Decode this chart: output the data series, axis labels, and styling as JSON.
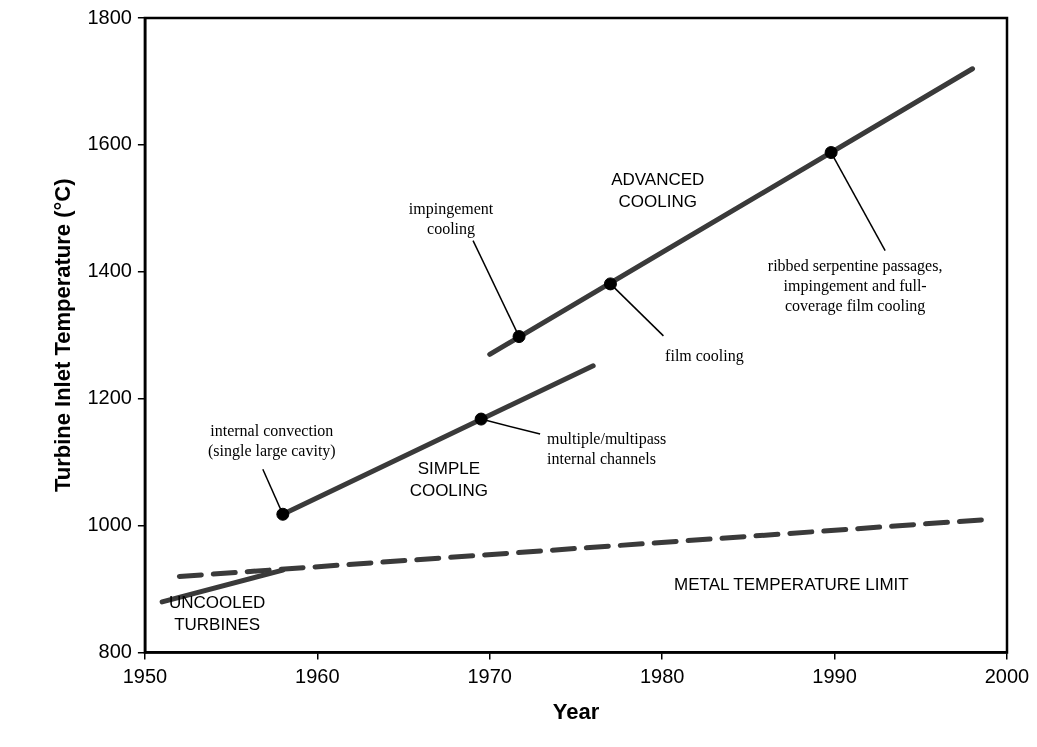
{
  "chart_data": {
    "type": "line",
    "xlabel": "Year",
    "ylabel": "Turbine Inlet Temperature (°C)",
    "xlim": [
      1950,
      2000
    ],
    "xticks": [
      1950,
      1960,
      1970,
      1980,
      1990,
      2000
    ],
    "ylim": [
      800,
      1800
    ],
    "yticks": [
      800,
      1000,
      1200,
      1400,
      1600,
      1800
    ],
    "legend": false,
    "grid": false,
    "marker": "none",
    "series": [
      {
        "name": "UNCOOLED TURBINES",
        "color": "#3a3a3a",
        "x": [
          1951,
          1958
        ],
        "values": [
          880,
          930
        ],
        "line_style": "solid"
      },
      {
        "name": "SIMPLE COOLING",
        "color": "#3a3a3a",
        "x": [
          1958,
          1976
        ],
        "values": [
          1018,
          1252
        ],
        "line_style": "solid"
      },
      {
        "name": "ADVANCED COOLING",
        "color": "#3a3a3a",
        "x": [
          1970,
          1998
        ],
        "values": [
          1270,
          1720
        ],
        "line_style": "solid"
      },
      {
        "name": "METAL TEMPERATURE LIMIT",
        "color": "#3a3a3a",
        "x": [
          1952,
          1999
        ],
        "values": [
          920,
          1010
        ],
        "line_style": "dashed"
      },
      {
        "type": "scatter",
        "color": "#000000",
        "marker": "circle",
        "x": [
          1958,
          1969.5,
          1971.7,
          1977,
          1989.8
        ],
        "values": [
          1018,
          1168,
          1298,
          1381,
          1588
        ]
      }
    ],
    "annotations": [
      {
        "text": "internal convection\n(single large cavity)",
        "x": 1958,
        "y": 1018
      },
      {
        "text": "multiple/multipass\ninternal channels",
        "x": 1969.5,
        "y": 1168
      },
      {
        "text": "impingement\ncooling",
        "x": 1971.7,
        "y": 1298
      },
      {
        "text": "film cooling",
        "x": 1977,
        "y": 1381
      },
      {
        "text": "ribbed serpentine passages,\nimpingement and full-\ncoverage film cooling",
        "x": 1989.8,
        "y": 1588
      }
    ]
  }
}
